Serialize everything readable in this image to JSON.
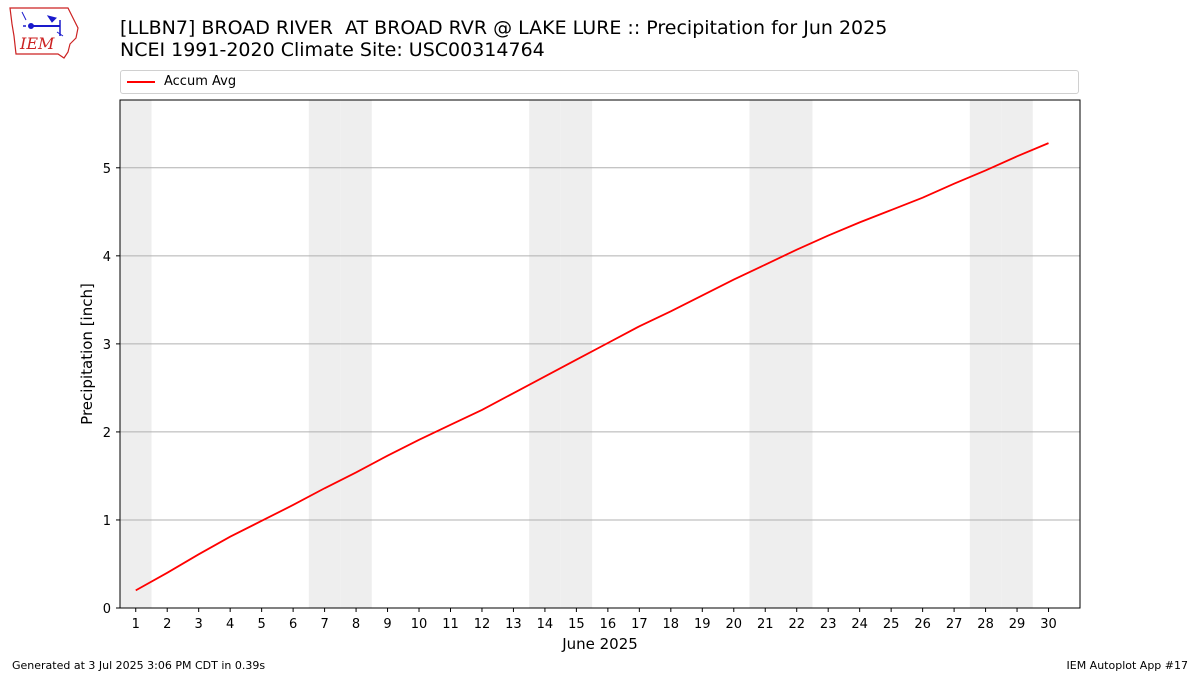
{
  "header": {
    "title_line1": "[LLBN7] BROAD RIVER  AT BROAD RVR @ LAKE LURE :: Precipitation for Jun 2025",
    "title_line2": "NCEI 1991-2020 Climate Site: USC00314764",
    "logo_text": "IEM"
  },
  "legend": {
    "series_label": "Accum Avg",
    "placement": "top"
  },
  "footer": {
    "left": "Generated at 3 Jul 2025 3:06 PM CDT in 0.39s",
    "right": "IEM Autoplot App #17"
  },
  "colors": {
    "line": "#ff0000",
    "weekend_shade": "#eeeeee",
    "grid": "#b0b0b0",
    "logo": "#cc2222",
    "logo_blue": "#1a1acc"
  },
  "chart_data": {
    "type": "line",
    "xlabel": "June 2025",
    "ylabel": "Precipitation [inch]",
    "x": [
      1,
      2,
      3,
      4,
      5,
      6,
      7,
      8,
      9,
      10,
      11,
      12,
      13,
      14,
      15,
      16,
      17,
      18,
      19,
      20,
      21,
      22,
      23,
      24,
      25,
      26,
      27,
      28,
      29,
      30
    ],
    "x_tick_labels": [
      "1",
      "2",
      "3",
      "4",
      "5",
      "6",
      "7",
      "8",
      "9",
      "10",
      "11",
      "12",
      "13",
      "14",
      "15",
      "16",
      "17",
      "18",
      "19",
      "20",
      "21",
      "22",
      "23",
      "24",
      "25",
      "26",
      "27",
      "28",
      "29",
      "30"
    ],
    "xlim": [
      0.5,
      31.0
    ],
    "ylim": [
      0,
      5.77
    ],
    "y_ticks": [
      0,
      1,
      2,
      3,
      4,
      5
    ],
    "grid": "y",
    "shaded_weekend_days": [
      1,
      7,
      8,
      14,
      15,
      21,
      22,
      28,
      29
    ],
    "series": [
      {
        "name": "Accum Avg",
        "color": "#ff0000",
        "values": [
          0.2,
          0.4,
          0.61,
          0.81,
          0.99,
          1.17,
          1.36,
          1.54,
          1.73,
          1.91,
          2.08,
          2.25,
          2.44,
          2.63,
          2.82,
          3.01,
          3.2,
          3.37,
          3.55,
          3.73,
          3.9,
          4.07,
          4.23,
          4.38,
          4.52,
          4.66,
          4.82,
          4.97,
          5.13,
          5.28
        ]
      }
    ]
  }
}
